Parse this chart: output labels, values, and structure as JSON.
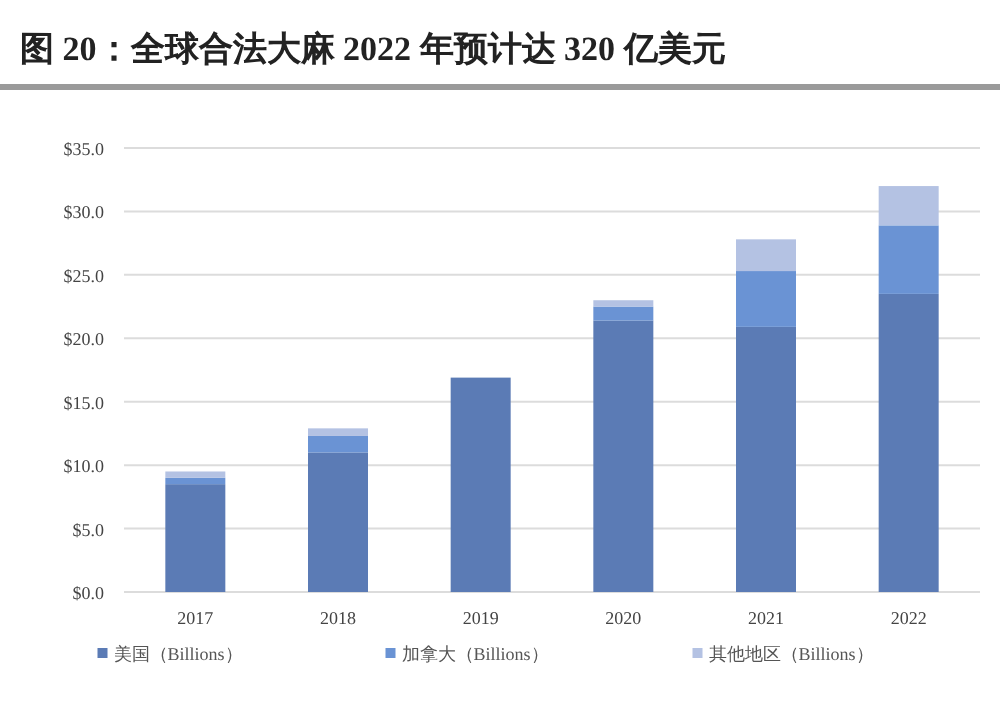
{
  "chart_data": {
    "type": "bar",
    "title": "图 20：全球合法大麻 2022 年预计达 320 亿美元",
    "stacked": true,
    "categories": [
      "2017",
      "2018",
      "2019",
      "2020",
      "2021",
      "2022"
    ],
    "series": [
      {
        "name": "美国（Billions）",
        "color": "#5b7bb5",
        "values": [
          8.5,
          11.0,
          16.9,
          21.4,
          20.9,
          23.5
        ]
      },
      {
        "name": "加拿大（Billions）",
        "color": "#6a93d4",
        "values": [
          0.5,
          1.3,
          null,
          1.1,
          4.4,
          5.4
        ]
      },
      {
        "name": "其他地区（Billions）",
        "color": "#b4c2e3",
        "values": [
          0.5,
          0.6,
          null,
          0.5,
          2.5,
          3.1
        ]
      }
    ],
    "ylim": [
      0,
      35
    ],
    "yticks": [
      {
        "value": 0,
        "label": "$0.0"
      },
      {
        "value": 5,
        "label": "$5.0"
      },
      {
        "value": 10,
        "label": "$10.0"
      },
      {
        "value": 15,
        "label": "$15.0"
      },
      {
        "value": 20,
        "label": "$20.0"
      },
      {
        "value": 25,
        "label": "$25.0"
      },
      {
        "value": 30,
        "label": "$30.0"
      },
      {
        "value": 35,
        "label": "$35.0"
      }
    ],
    "grid": "y",
    "legend": "bottom"
  }
}
